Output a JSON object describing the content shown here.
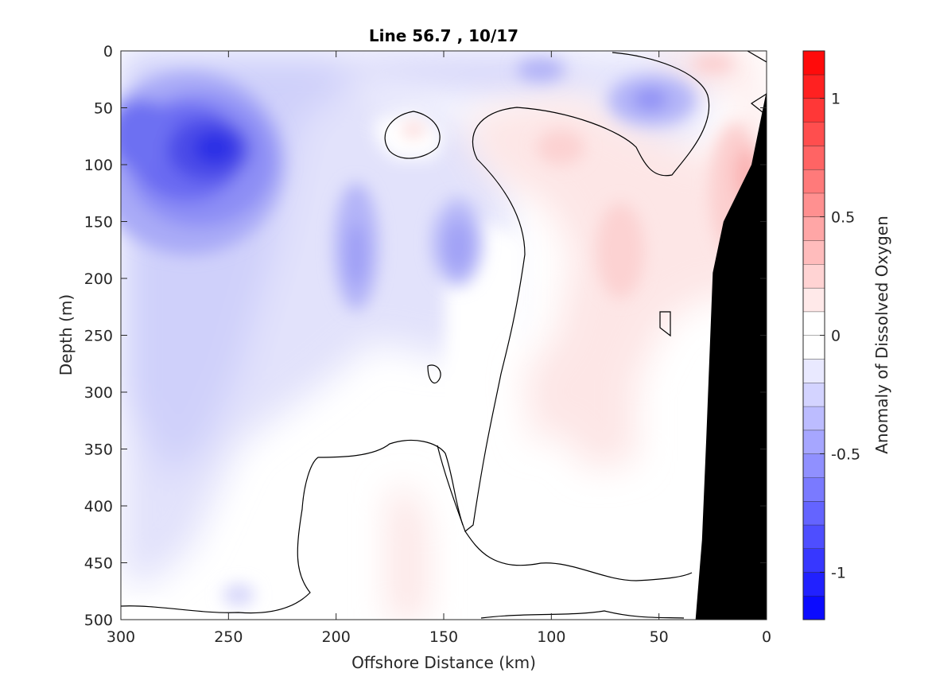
{
  "chart_data": {
    "type": "contourf",
    "title": "Line 56.7 , 10/17",
    "xlabel": "Offshore Distance (km)",
    "ylabel": "Depth (m)",
    "xlim": [
      300,
      0
    ],
    "ylim": [
      500,
      0
    ],
    "x_ticks": [
      {
        "value": 300,
        "label": "300"
      },
      {
        "value": 250,
        "label": "250"
      },
      {
        "value": 200,
        "label": "200"
      },
      {
        "value": 150,
        "label": "150"
      },
      {
        "value": 100,
        "label": "100"
      },
      {
        "value": 50,
        "label": "50"
      },
      {
        "value": 0,
        "label": "0"
      }
    ],
    "y_ticks": [
      {
        "value": 0,
        "label": "0"
      },
      {
        "value": 50,
        "label": "50"
      },
      {
        "value": 100,
        "label": "100"
      },
      {
        "value": 150,
        "label": "150"
      },
      {
        "value": 200,
        "label": "200"
      },
      {
        "value": 250,
        "label": "250"
      },
      {
        "value": 300,
        "label": "300"
      },
      {
        "value": 350,
        "label": "350"
      },
      {
        "value": 400,
        "label": "400"
      },
      {
        "value": 450,
        "label": "450"
      },
      {
        "value": 500,
        "label": "500"
      }
    ],
    "colorbar": {
      "label": "Anomaly of Dissolved Oxygen",
      "range": [
        -1.2,
        1.2
      ],
      "levels": [
        -1.2,
        -1.1,
        -1.0,
        -0.9,
        -0.8,
        -0.7,
        -0.6,
        -0.5,
        -0.4,
        -0.3,
        -0.2,
        -0.1,
        0.0,
        0.1,
        0.2,
        0.3,
        0.4,
        0.5,
        0.6,
        0.7,
        0.8,
        0.9,
        1.0,
        1.1,
        1.2
      ],
      "ticks": [
        {
          "value": 1,
          "label": "1"
        },
        {
          "value": 0.5,
          "label": "0.5"
        },
        {
          "value": 0,
          "label": "0"
        },
        {
          "value": -0.5,
          "label": "-0.5"
        },
        {
          "value": -1,
          "label": "-1"
        }
      ]
    },
    "colors": {
      "negative_max": "#0000ff",
      "positive_max": "#ff0000",
      "zero": "#ffffff",
      "land": "#000000",
      "contour": "#000000"
    },
    "features": [
      {
        "name": "min-core-nearshore-west",
        "value": -0.95,
        "x": 258,
        "depth": 85
      },
      {
        "name": "min-core-offshore-edge",
        "value": -0.85,
        "x": 298,
        "depth": 80
      },
      {
        "name": "min-core-surface-50km",
        "value": -0.55,
        "x": 45,
        "depth": 42
      },
      {
        "name": "min-core-190km",
        "value": -0.45,
        "x": 190,
        "depth": 170
      },
      {
        "name": "min-core-145km",
        "value": -0.4,
        "x": 145,
        "depth": 170
      },
      {
        "name": "max-core-5km",
        "value": 0.35,
        "x": 10,
        "depth": 110
      },
      {
        "name": "max-core-20km-surface",
        "value": 0.25,
        "x": 23,
        "depth": 12
      },
      {
        "name": "max-core-95km",
        "value": 0.2,
        "x": 95,
        "depth": 85
      },
      {
        "name": "max-core-60km",
        "value": 0.2,
        "x": 62,
        "depth": 200
      }
    ],
    "bathymetry": [
      {
        "x": 0,
        "depth": 35
      },
      {
        "x": 7,
        "depth": 100
      },
      {
        "x": 20,
        "depth": 150
      },
      {
        "x": 25,
        "depth": 195
      },
      {
        "x": 28,
        "depth": 340
      },
      {
        "x": 30,
        "depth": 430
      },
      {
        "x": 33,
        "depth": 500
      }
    ]
  }
}
